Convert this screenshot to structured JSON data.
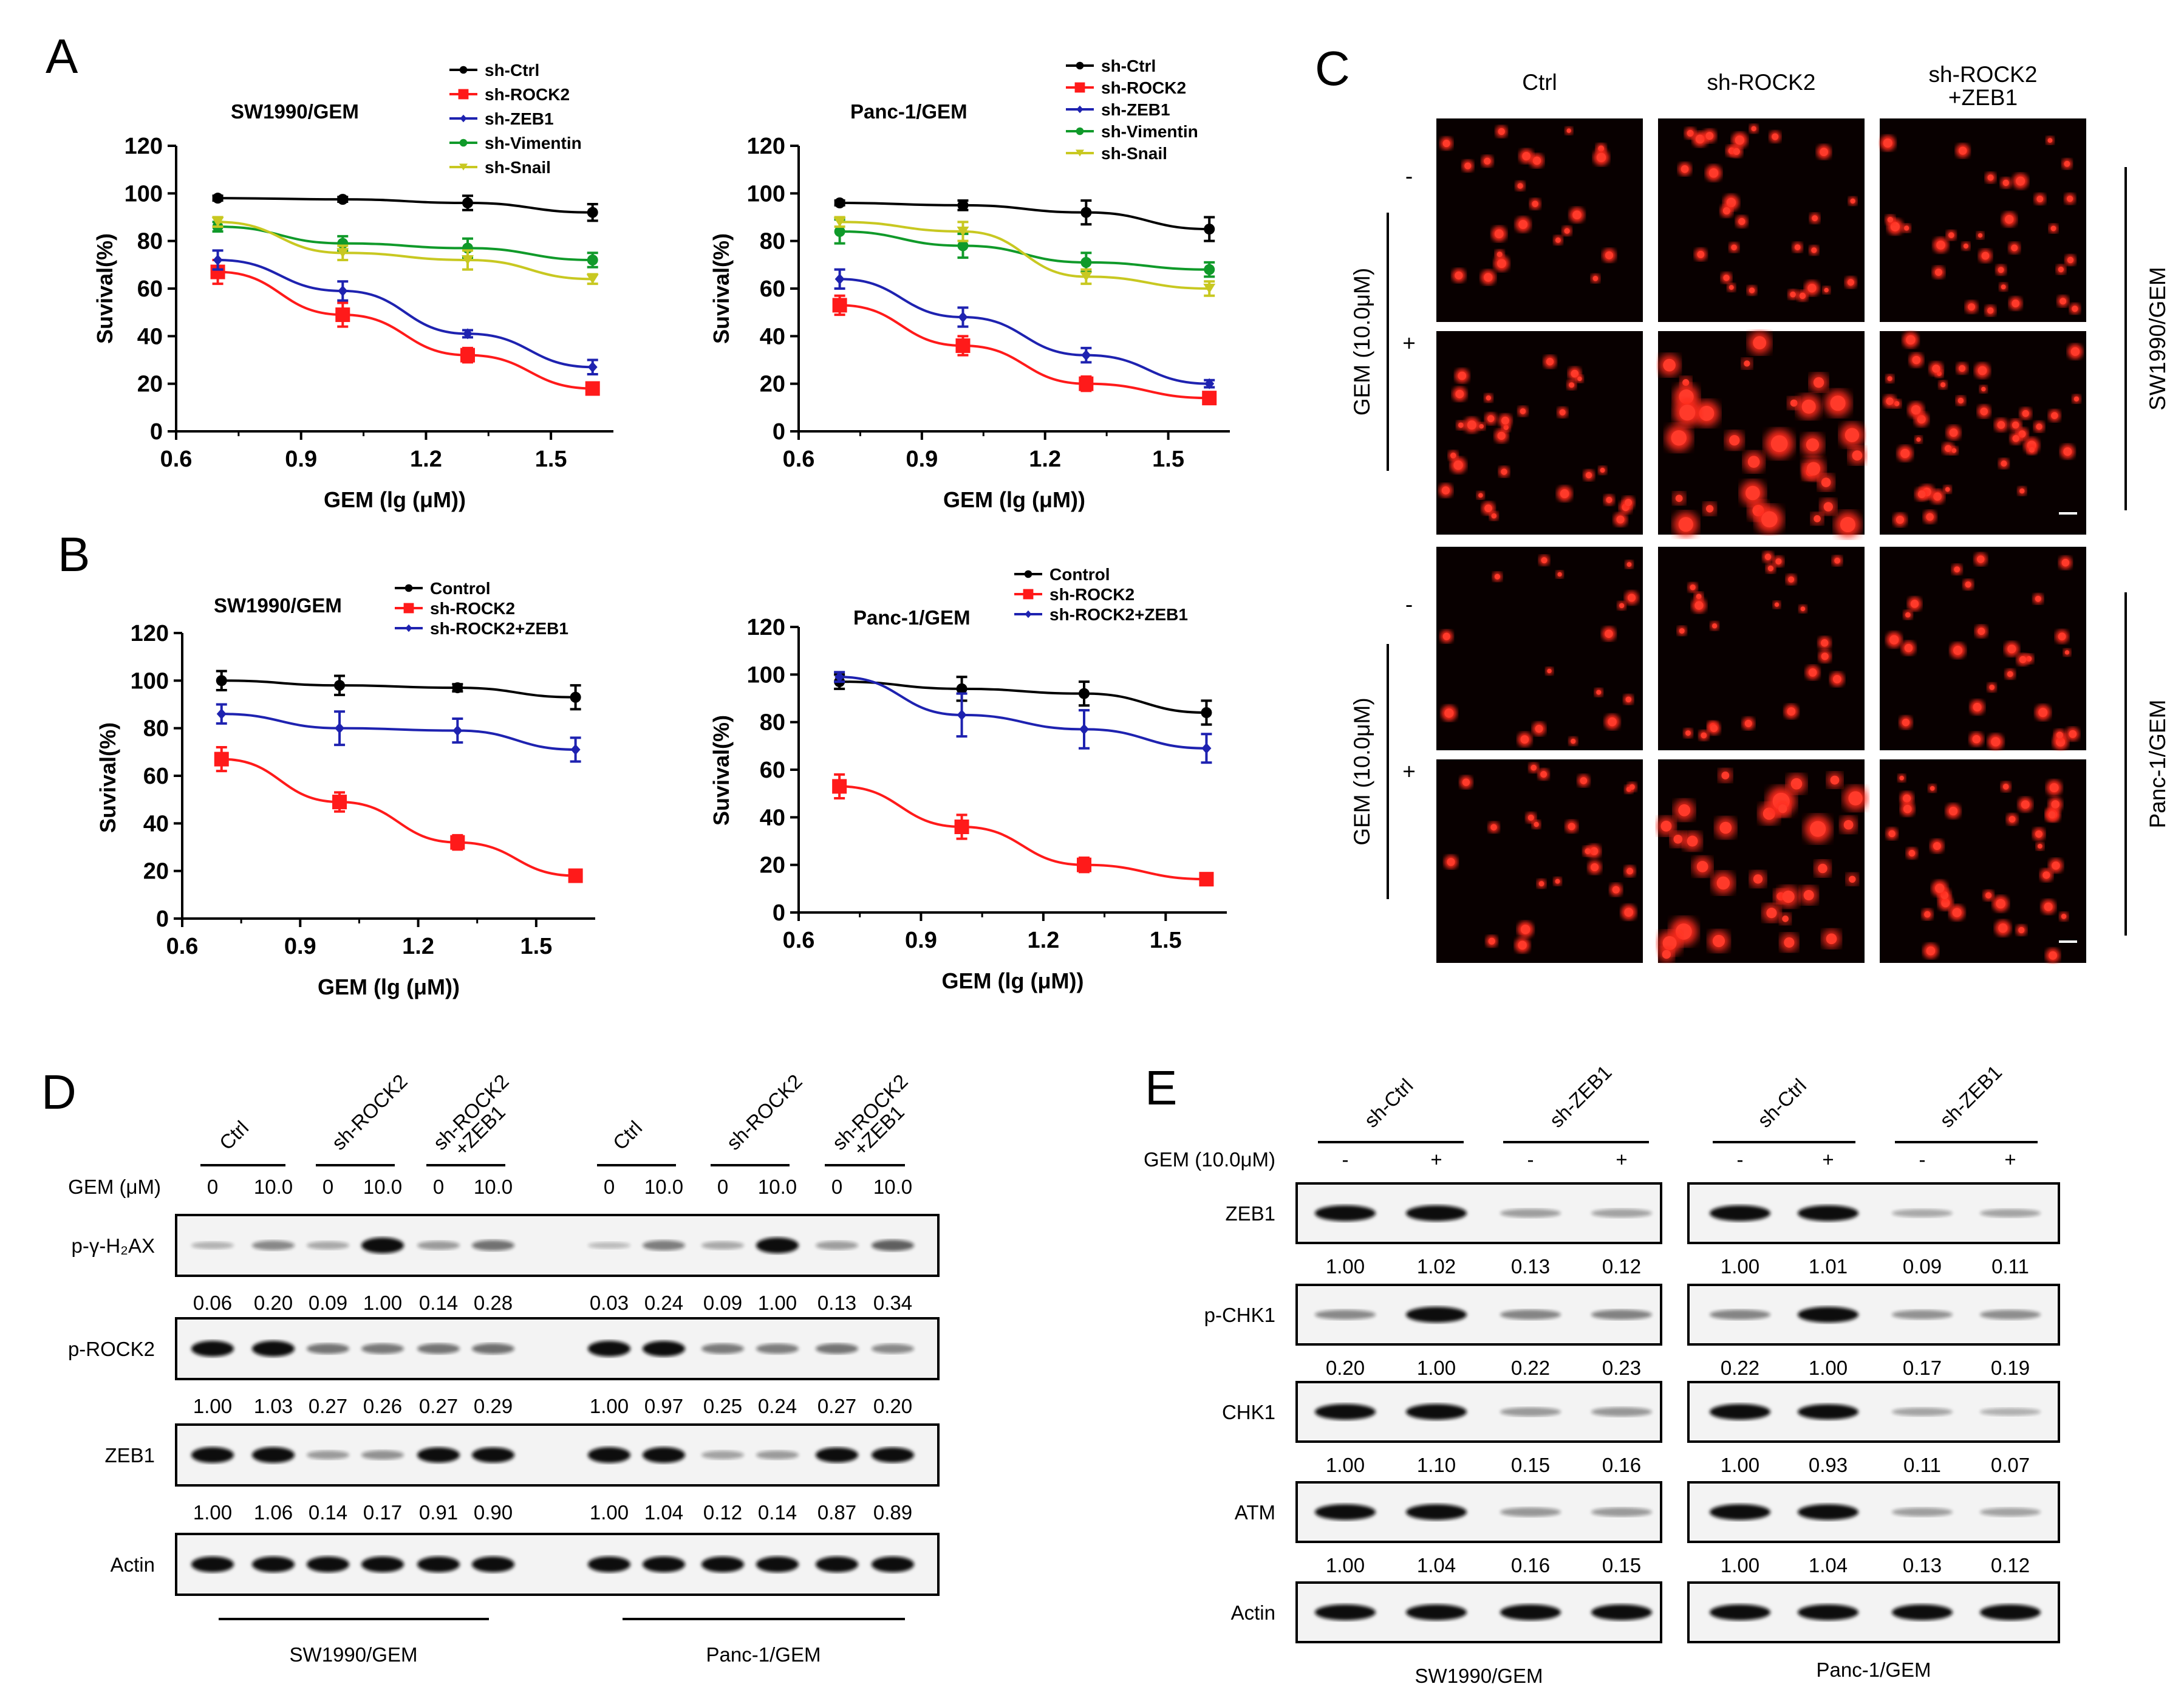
{
  "colors": {
    "ctrl": "#000000",
    "rock2": "#ff1a1a",
    "zeb1": "#1e22b0",
    "vim": "#109a2a",
    "snail": "#c8c821",
    "band": "#111111",
    "fluor": "#ff2a1a"
  },
  "panels": {
    "A": "A",
    "B": "B",
    "C": "C",
    "D": "D",
    "E": "E"
  },
  "chart_data": [
    {
      "id": "A1",
      "type": "line",
      "title": "SW1990/GEM",
      "xlabel": "GEM (lg (μM))",
      "ylabel": "Suvival(%)",
      "xlim": [
        0.6,
        1.65
      ],
      "ylim": [
        0,
        120
      ],
      "xticks": [
        "0.6",
        "0.9",
        "1.2",
        "1.5"
      ],
      "yticks": [
        "0",
        "20",
        "40",
        "60",
        "80",
        "100",
        "120"
      ],
      "x": [
        0.7,
        1.0,
        1.3,
        1.6
      ],
      "series": [
        {
          "name": "sh-Ctrl",
          "color": "#000000",
          "marker": "circle",
          "values": [
            98,
            97.5,
            96,
            92
          ],
          "err": [
            1,
            1,
            3,
            3.5
          ]
        },
        {
          "name": "sh-ROCK2",
          "color": "#ff1a1a",
          "marker": "square",
          "values": [
            67,
            49,
            32,
            18
          ],
          "err": [
            5,
            5,
            3,
            2
          ]
        },
        {
          "name": "sh-ZEB1",
          "color": "#1e22b0",
          "marker": "diamond",
          "values": [
            72,
            59,
            41,
            27
          ],
          "err": [
            4,
            4,
            1.5,
            3
          ]
        },
        {
          "name": "sh-Vimentin",
          "color": "#109a2a",
          "marker": "circle",
          "values": [
            86,
            79,
            77,
            72
          ],
          "err": [
            2,
            3,
            4,
            3
          ]
        },
        {
          "name": "sh-Snail",
          "color": "#c8c821",
          "marker": "triangle",
          "values": [
            88,
            75,
            72,
            64
          ],
          "err": [
            2,
            3,
            4,
            2
          ]
        }
      ]
    },
    {
      "id": "A2",
      "type": "line",
      "title": "Panc-1/GEM",
      "xlabel": "GEM (lg (μM))",
      "ylabel": "Suvival(%)",
      "xlim": [
        0.6,
        1.65
      ],
      "ylim": [
        0,
        120
      ],
      "xticks": [
        "0.6",
        "0.9",
        "1.2",
        "1.5"
      ],
      "yticks": [
        "0",
        "20",
        "40",
        "60",
        "80",
        "100",
        "120"
      ],
      "x": [
        0.7,
        1.0,
        1.3,
        1.6
      ],
      "series": [
        {
          "name": "sh-Ctrl",
          "color": "#000000",
          "marker": "circle",
          "values": [
            96,
            95,
            92,
            85
          ],
          "err": [
            1,
            2,
            5,
            5
          ]
        },
        {
          "name": "sh-ROCK2",
          "color": "#ff1a1a",
          "marker": "square",
          "values": [
            53,
            36,
            20,
            14
          ],
          "err": [
            4,
            4,
            3,
            2
          ]
        },
        {
          "name": "sh-ZEB1",
          "color": "#1e22b0",
          "marker": "diamond",
          "values": [
            64,
            48,
            32,
            20
          ],
          "err": [
            4,
            4,
            3,
            1.5
          ]
        },
        {
          "name": "sh-Vimentin",
          "color": "#109a2a",
          "marker": "circle",
          "values": [
            84,
            78,
            71,
            68
          ],
          "err": [
            5,
            5,
            4,
            3
          ]
        },
        {
          "name": "sh-Snail",
          "color": "#c8c821",
          "marker": "triangle",
          "values": [
            88,
            84,
            65,
            60
          ],
          "err": [
            2,
            4,
            3,
            3
          ]
        }
      ]
    },
    {
      "id": "B1",
      "type": "line",
      "title": "SW1990/GEM",
      "xlabel": "GEM (lg (μM))",
      "ylabel": "Suvival(%)",
      "xlim": [
        0.6,
        1.65
      ],
      "ylim": [
        0,
        120
      ],
      "xticks": [
        "0.6",
        "0.9",
        "1.2",
        "1.5"
      ],
      "yticks": [
        "0",
        "20",
        "40",
        "60",
        "80",
        "100",
        "120"
      ],
      "x": [
        0.7,
        1.0,
        1.3,
        1.6
      ],
      "series": [
        {
          "name": "Control",
          "color": "#000000",
          "marker": "circle",
          "values": [
            100,
            98,
            97,
            93
          ],
          "err": [
            4,
            4,
            1.5,
            5
          ]
        },
        {
          "name": "sh-ROCK2",
          "color": "#ff1a1a",
          "marker": "square",
          "values": [
            67,
            49,
            32,
            18
          ],
          "err": [
            5,
            4,
            3,
            2
          ]
        },
        {
          "name": "sh-ROCK2+ZEB1",
          "color": "#1e22b0",
          "marker": "diamond",
          "values": [
            86,
            80,
            79,
            71
          ],
          "err": [
            4,
            7,
            5,
            5
          ]
        }
      ]
    },
    {
      "id": "B2",
      "type": "line",
      "title": "Panc-1/GEM",
      "xlabel": "GEM (lg (μM))",
      "ylabel": "Suvival(%)",
      "xlim": [
        0.6,
        1.65
      ],
      "ylim": [
        0,
        120
      ],
      "xticks": [
        "0.6",
        "0.9",
        "1.2",
        "1.5"
      ],
      "yticks": [
        "0",
        "20",
        "40",
        "60",
        "80",
        "100",
        "120"
      ],
      "x": [
        0.7,
        1.0,
        1.3,
        1.6
      ],
      "series": [
        {
          "name": "Control",
          "color": "#000000",
          "marker": "circle",
          "values": [
            97,
            94,
            92,
            84
          ],
          "err": [
            3,
            5,
            5,
            5
          ]
        },
        {
          "name": "sh-ROCK2",
          "color": "#ff1a1a",
          "marker": "square",
          "values": [
            53,
            36,
            20,
            14
          ],
          "err": [
            5,
            5,
            3,
            2
          ]
        },
        {
          "name": "sh-ROCK2+ZEB1",
          "color": "#1e22b0",
          "marker": "diamond",
          "values": [
            99,
            83,
            77,
            69
          ],
          "err": [
            2,
            9,
            8,
            6
          ]
        }
      ]
    }
  ],
  "panelC": {
    "cols": [
      "Ctrl",
      "sh-ROCK2",
      "sh-ROCK2\n+ZEB1"
    ],
    "treatment": "GEM (10.0μM)",
    "minus": "-",
    "plus": "+",
    "lines": [
      "SW1990/GEM",
      "Panc-1/GEM"
    ]
  },
  "panelD": {
    "groups": [
      "Ctrl",
      "sh-ROCK2",
      "sh-ROCK2\n+ZEB1",
      "Ctrl",
      "sh-ROCK2",
      "sh-ROCK2\n+ZEB1"
    ],
    "gem_label": "GEM (μM)",
    "doses": [
      "0",
      "10.0",
      "0",
      "10.0",
      "0",
      "10.0",
      "0",
      "10.0",
      "0",
      "10.0",
      "0",
      "10.0"
    ],
    "blots": [
      {
        "name": "p-γ-H₂AX",
        "intensity": [
          0.06,
          0.2,
          0.09,
          1.0,
          0.14,
          0.28,
          0.03,
          0.24,
          0.09,
          1.0,
          0.13,
          0.34
        ],
        "labels": [
          "0.06",
          "0.20",
          "0.09",
          "1.00",
          "0.14",
          "0.28",
          "0.03",
          "0.24",
          "0.09",
          "1.00",
          "0.13",
          "0.34"
        ]
      },
      {
        "name": "p-ROCK2",
        "intensity": [
          1.0,
          1.03,
          0.27,
          0.26,
          0.27,
          0.29,
          1.0,
          0.97,
          0.25,
          0.24,
          0.27,
          0.2
        ],
        "labels": [
          "1.00",
          "1.03",
          "0.27",
          "0.26",
          "0.27",
          "0.29",
          "1.00",
          "0.97",
          "0.25",
          "0.24",
          "0.27",
          "0.20"
        ]
      },
      {
        "name": "ZEB1",
        "intensity": [
          1.0,
          1.06,
          0.14,
          0.17,
          0.91,
          0.9,
          1.0,
          1.04,
          0.12,
          0.14,
          0.87,
          0.89
        ],
        "labels": [
          "1.00",
          "1.06",
          "0.14",
          "0.17",
          "0.91",
          "0.90",
          "1.00",
          "1.04",
          "0.12",
          "0.14",
          "0.87",
          "0.89"
        ]
      },
      {
        "name": "Actin",
        "intensity": [
          1,
          1,
          1,
          1,
          1,
          1,
          1,
          1,
          1,
          1,
          1,
          1
        ],
        "labels": []
      }
    ],
    "cells": [
      "SW1990/GEM",
      "Panc-1/GEM"
    ]
  },
  "panelE": {
    "groups": [
      "sh-Ctrl",
      "sh-ZEB1",
      "sh-Ctrl",
      "sh-ZEB1"
    ],
    "gem_label": "GEM (10.0μM)",
    "signs": [
      "-",
      "+",
      "-",
      "+",
      "-",
      "+",
      "-",
      "+"
    ],
    "blots": [
      {
        "name": "ZEB1",
        "intensity": [
          1.0,
          1.02,
          0.13,
          0.12,
          1.0,
          1.01,
          0.09,
          0.11
        ],
        "labels": [
          "1.00",
          "1.02",
          "0.13",
          "0.12",
          "1.00",
          "1.01",
          "0.09",
          "0.11"
        ]
      },
      {
        "name": "p-CHK1",
        "intensity": [
          0.2,
          1.0,
          0.22,
          0.23,
          0.22,
          1.0,
          0.17,
          0.19
        ],
        "labels": [
          "0.20",
          "1.00",
          "0.22",
          "0.23",
          "0.22",
          "1.00",
          "0.17",
          "0.19"
        ]
      },
      {
        "name": "CHK1",
        "intensity": [
          1.0,
          1.1,
          0.15,
          0.16,
          1.0,
          0.93,
          0.11,
          0.07
        ],
        "labels": [
          "1.00",
          "1.10",
          "0.15",
          "0.16",
          "1.00",
          "0.93",
          "0.11",
          "0.07"
        ]
      },
      {
        "name": "ATM",
        "intensity": [
          1.0,
          1.04,
          0.16,
          0.15,
          1.0,
          1.04,
          0.13,
          0.12
        ],
        "labels": [
          "1.00",
          "1.04",
          "0.16",
          "0.15",
          "1.00",
          "1.04",
          "0.13",
          "0.12"
        ]
      },
      {
        "name": "Actin",
        "intensity": [
          1,
          1,
          1,
          1,
          1,
          1,
          1,
          1
        ],
        "labels": []
      }
    ],
    "cells": [
      "SW1990/GEM",
      "Panc-1/GEM"
    ]
  }
}
